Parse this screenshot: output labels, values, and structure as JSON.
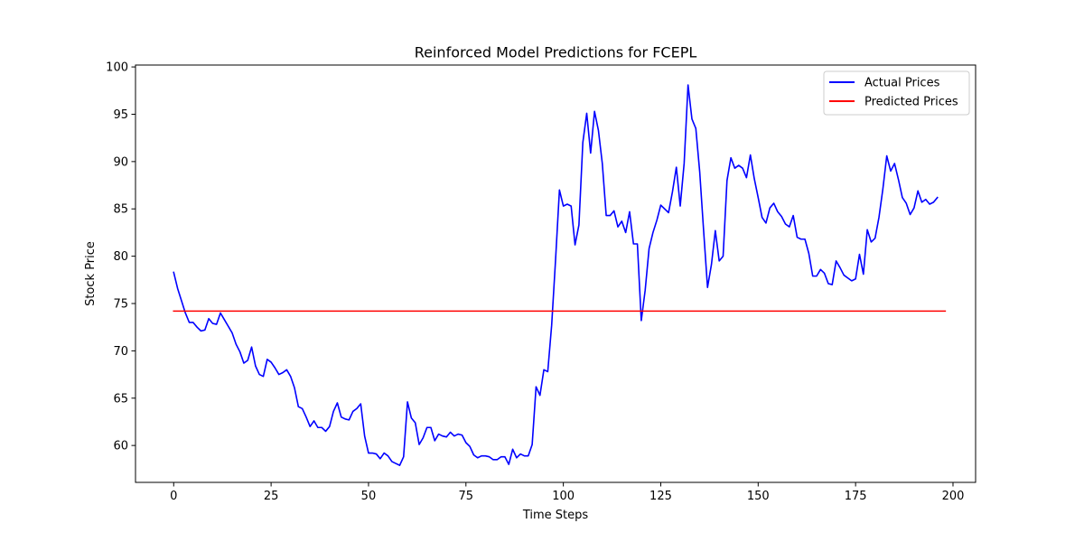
{
  "chart_data": {
    "type": "line",
    "title": "Reinforced Model Predictions for FCEPL",
    "xlabel": "Time Steps",
    "ylabel": "Stock Price",
    "xlim": [
      -9.8,
      205.8
    ],
    "ylim": [
      56.1,
      100.2
    ],
    "xticks": [
      0,
      25,
      50,
      75,
      100,
      125,
      150,
      175,
      200
    ],
    "yticks": [
      60,
      65,
      70,
      75,
      80,
      85,
      90,
      95,
      100
    ],
    "grid": false,
    "legend_position": "top-right",
    "series": [
      {
        "name": "Actual Prices",
        "color": "#0000ff",
        "values": [
          78.3,
          76.6,
          75.3,
          74.0,
          73.0,
          73.0,
          72.5,
          72.1,
          72.2,
          73.4,
          72.9,
          72.8,
          74.0,
          73.3,
          72.6,
          71.9,
          70.7,
          69.9,
          68.7,
          69.0,
          70.4,
          68.4,
          67.5,
          67.3,
          69.1,
          68.8,
          68.2,
          67.5,
          67.7,
          68.0,
          67.3,
          66.1,
          64.1,
          63.9,
          63.0,
          62.0,
          62.6,
          61.9,
          61.9,
          61.5,
          62.0,
          63.6,
          64.5,
          63.0,
          62.8,
          62.7,
          63.6,
          63.9,
          64.4,
          61.0,
          59.2,
          59.2,
          59.1,
          58.6,
          59.2,
          58.9,
          58.3,
          58.1,
          57.9,
          58.8,
          64.6,
          62.9,
          62.4,
          60.1,
          60.8,
          61.9,
          61.9,
          60.5,
          61.2,
          61.0,
          60.9,
          61.4,
          61.0,
          61.2,
          61.1,
          60.3,
          59.9,
          59.0,
          58.7,
          58.9,
          58.9,
          58.8,
          58.5,
          58.5,
          58.8,
          58.8,
          58.0,
          59.6,
          58.7,
          59.1,
          58.9,
          58.9,
          60.1,
          66.2,
          65.3,
          68.0,
          67.8,
          72.7,
          79.6,
          87.0,
          85.3,
          85.5,
          85.3,
          81.2,
          83.3,
          92.0,
          95.1,
          90.9,
          95.3,
          93.3,
          89.8,
          84.3,
          84.3,
          84.8,
          83.1,
          83.7,
          82.5,
          84.7,
          81.3,
          81.3,
          73.2,
          76.4,
          80.8,
          82.5,
          83.8,
          85.4,
          85.0,
          84.6,
          86.8,
          89.4,
          85.3,
          89.8,
          98.1,
          94.5,
          93.5,
          88.9,
          82.7,
          76.7,
          79.1,
          82.7,
          79.5,
          80.0,
          88.0,
          90.4,
          89.3,
          89.6,
          89.3,
          88.3,
          90.7,
          88.2,
          86.2,
          84.1,
          83.5,
          85.1,
          85.6,
          84.7,
          84.2,
          83.4,
          83.1,
          84.3,
          82.0,
          81.8,
          81.8,
          80.3,
          77.9,
          77.9,
          78.6,
          78.2,
          77.1,
          77.0,
          79.5,
          78.8,
          78.0,
          77.7,
          77.4,
          77.6,
          80.2,
          78.1,
          82.8,
          81.5,
          81.9,
          84.1,
          87.1,
          90.6,
          89.0,
          89.8,
          88.1,
          86.2,
          85.6,
          84.4,
          85.1,
          86.9,
          85.7,
          86.0,
          85.5,
          85.7,
          86.2
        ]
      },
      {
        "name": "Predicted Prices",
        "color": "#ff0000",
        "values": [
          74.2,
          74.2,
          74.2,
          74.2,
          74.2,
          74.2,
          74.2,
          74.2,
          74.2,
          74.2,
          74.2,
          74.2,
          74.2,
          74.2,
          74.2,
          74.2,
          74.2,
          74.2,
          74.2,
          74.2,
          74.2,
          74.2,
          74.2,
          74.2,
          74.2,
          74.2,
          74.2,
          74.2,
          74.2,
          74.2,
          74.2,
          74.2,
          74.2,
          74.2,
          74.2,
          74.2,
          74.2,
          74.2,
          74.2,
          74.2,
          74.2,
          74.2,
          74.2,
          74.2,
          74.2,
          74.2,
          74.2,
          74.2,
          74.2,
          74.2,
          74.2,
          74.2,
          74.2,
          74.2,
          74.2,
          74.2,
          74.2,
          74.2,
          74.2,
          74.2,
          74.2,
          74.2,
          74.2,
          74.2,
          74.2,
          74.2,
          74.2,
          74.2,
          74.2,
          74.2,
          74.2,
          74.2,
          74.2,
          74.2,
          74.2,
          74.2,
          74.2,
          74.2,
          74.2,
          74.2,
          74.2,
          74.2,
          74.2,
          74.2,
          74.2,
          74.2,
          74.2,
          74.2,
          74.2,
          74.2,
          74.2,
          74.2,
          74.2,
          74.2,
          74.2,
          74.2,
          74.2,
          74.2,
          74.2,
          74.2,
          74.2,
          74.2,
          74.2,
          74.2,
          74.2,
          74.2,
          74.2,
          74.2,
          74.2,
          74.2,
          74.2,
          74.2,
          74.2,
          74.2,
          74.2,
          74.2,
          74.2,
          74.2,
          74.2,
          74.2,
          74.2,
          74.2,
          74.2,
          74.2,
          74.2,
          74.2,
          74.2,
          74.2,
          74.2,
          74.2,
          74.2,
          74.2,
          74.2,
          74.2,
          74.2,
          74.2,
          74.2,
          74.2,
          74.2,
          74.2,
          74.2,
          74.2,
          74.2,
          74.2,
          74.2,
          74.2,
          74.2,
          74.2,
          74.2,
          74.2,
          74.2,
          74.2,
          74.2,
          74.2,
          74.2,
          74.2,
          74.2,
          74.2,
          74.2,
          74.2,
          74.2,
          74.2,
          74.2,
          74.2,
          74.2,
          74.2,
          74.2,
          74.2,
          74.2,
          74.2,
          74.2,
          74.2,
          74.2,
          74.2,
          74.2,
          74.2,
          74.2,
          74.2,
          74.2,
          74.2,
          74.2,
          74.2,
          74.2,
          74.2,
          74.2,
          74.2,
          74.2,
          74.2,
          74.2,
          74.2,
          74.2,
          74.2,
          74.2,
          74.2,
          74.2,
          74.2,
          74.2,
          74.2,
          74.2
        ]
      }
    ]
  }
}
